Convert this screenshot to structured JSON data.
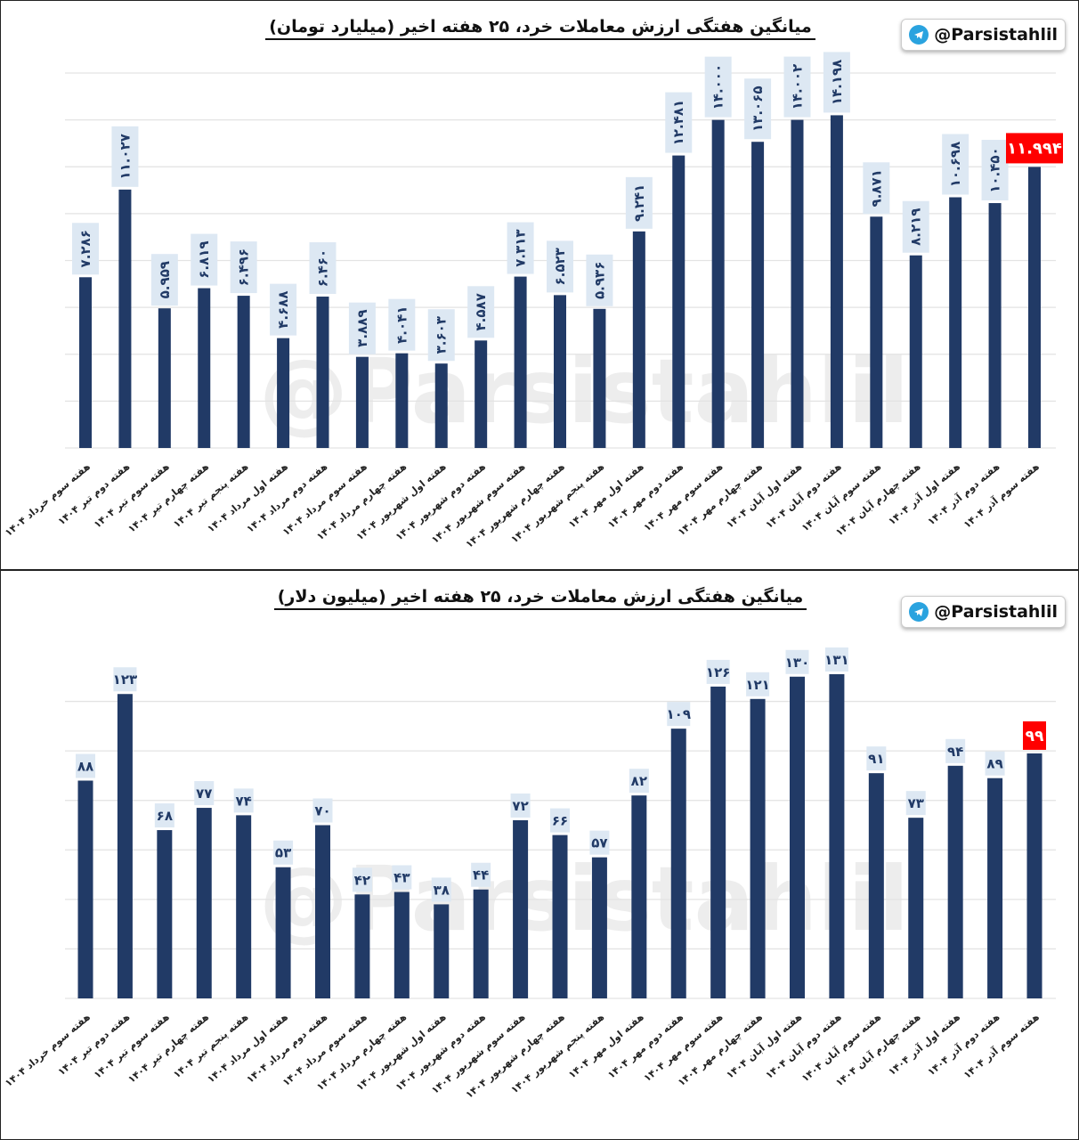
{
  "brand": {
    "handle": "@Parsistahlil",
    "watermark": "@Parsistahlil",
    "icon": "telegram-icon"
  },
  "colors": {
    "bar": "#213a66",
    "label_box": "#dde8f3",
    "highlight": "#ff0000",
    "grid": "#e3e3e3"
  },
  "chart_data": [
    {
      "type": "bar",
      "title": "میانگین هفتگی ارزش معاملات خرد، ۲۵ هفته اخیر (میلیارد تومان)",
      "grid": true,
      "ylim": [
        0,
        16
      ],
      "categories": [
        "هفته سوم خرداد ۱۴۰۴",
        "هفته دوم تیر ۱۴۰۴",
        "هفته سوم تیر ۱۴۰۴",
        "هفته چهارم تیر ۱۴۰۴",
        "هفته پنجم تیر ۱۴۰۴",
        "هفته اول مرداد ۱۴۰۴",
        "هفته دوم مرداد ۱۴۰۴",
        "هفته سوم مرداد ۱۴۰۴",
        "هفته چهارم مرداد ۱۴۰۴",
        "هفته اول شهریور ۱۴۰۴",
        "هفته دوم شهریور ۱۴۰۴",
        "هفته سوم شهریور ۱۴۰۴",
        "هفته چهارم شهریور ۱۴۰۴",
        "هفته پنجم شهریور ۱۴۰۴",
        "هفته اول مهر ۱۴۰۴",
        "هفته دوم مهر ۱۴۰۴",
        "هفته سوم مهر ۱۴۰۴",
        "هفته چهارم مهر ۱۴۰۴",
        "هفته اول آبان ۱۴۰۴",
        "هفته دوم آبان ۱۴۰۴",
        "هفته سوم آبان ۱۴۰۴",
        "هفته چهارم آبان ۱۴۰۴",
        "هفته اول آذر ۱۴۰۴",
        "هفته دوم آذر ۱۴۰۴",
        "هفته سوم آذر ۱۴۰۴"
      ],
      "values": [
        7.286,
        11.027,
        5.959,
        6.819,
        6.496,
        4.688,
        6.46,
        3.889,
        4.041,
        3.603,
        4.587,
        7.313,
        6.523,
        5.936,
        9.241,
        12.481,
        14.0,
        13.065,
        14.002,
        14.198,
        9.871,
        8.219,
        10.698,
        10.45,
        11.994
      ],
      "labels": [
        "۷.۲۸۶",
        "۱۱.۰۲۷",
        "۵.۹۵۹",
        "۶.۸۱۹",
        "۶.۴۹۶",
        "۴.۶۸۸",
        "۶.۴۶۰",
        "۳.۸۸۹",
        "۴.۰۴۱",
        "۳.۶۰۳",
        "۴.۵۸۷",
        "۷.۳۱۳",
        "۶.۵۲۳",
        "۵.۹۳۶",
        "۹.۲۴۱",
        "۱۲.۴۸۱",
        "۱۴.۰۰۰",
        "۱۳.۰۶۵",
        "۱۴.۰۰۲",
        "۱۴.۱۹۸",
        "۹.۸۷۱",
        "۸.۲۱۹",
        "۱۰.۶۹۸",
        "۱۰.۴۵۰",
        "۱۱.۹۹۴"
      ],
      "highlight_last": true
    },
    {
      "type": "bar",
      "title": "میانگین هفتگی ارزش معاملات خرد، ۲۵ هفته اخیر (میلیون دلار)",
      "grid": true,
      "ylim": [
        0,
        140
      ],
      "categories": [
        "هفته سوم خرداد ۱۴۰۴",
        "هفته دوم تیر ۱۴۰۴",
        "هفته سوم تیر ۱۴۰۴",
        "هفته چهارم تیر ۱۴۰۴",
        "هفته پنجم تیر ۱۴۰۴",
        "هفته اول مرداد ۱۴۰۴",
        "هفته دوم مرداد ۱۴۰۴",
        "هفته سوم مرداد ۱۴۰۴",
        "هفته چهارم مرداد ۱۴۰۴",
        "هفته اول شهریور ۱۴۰۴",
        "هفته دوم شهریور ۱۴۰۴",
        "هفته سوم شهریور ۱۴۰۴",
        "هفته چهارم شهریور ۱۴۰۴",
        "هفته پنجم شهریور ۱۴۰۴",
        "هفته اول مهر ۱۴۰۴",
        "هفته دوم مهر ۱۴۰۴",
        "هفته سوم مهر ۱۴۰۴",
        "هفته چهارم مهر ۱۴۰۴",
        "هفته اول آبان ۱۴۰۴",
        "هفته دوم آبان ۱۴۰۴",
        "هفته سوم آبان ۱۴۰۴",
        "هفته چهارم آبان ۱۴۰۴",
        "هفته اول آذر ۱۴۰۴",
        "هفته دوم آذر ۱۴۰۴",
        "هفته سوم آذر ۱۴۰۴"
      ],
      "values": [
        88,
        123,
        68,
        77,
        74,
        53,
        70,
        42,
        43,
        38,
        44,
        72,
        66,
        57,
        82,
        109,
        126,
        121,
        130,
        131,
        91,
        73,
        94,
        89,
        99
      ],
      "labels": [
        "۸۸",
        "۱۲۳",
        "۶۸",
        "۷۷",
        "۷۴",
        "۵۳",
        "۷۰",
        "۴۲",
        "۴۳",
        "۳۸",
        "۴۴",
        "۷۲",
        "۶۶",
        "۵۷",
        "۸۲",
        "۱۰۹",
        "۱۲۶",
        "۱۲۱",
        "۱۳۰",
        "۱۳۱",
        "۹۱",
        "۷۳",
        "۹۴",
        "۸۹",
        "۹۹"
      ],
      "highlight_last": true
    }
  ]
}
